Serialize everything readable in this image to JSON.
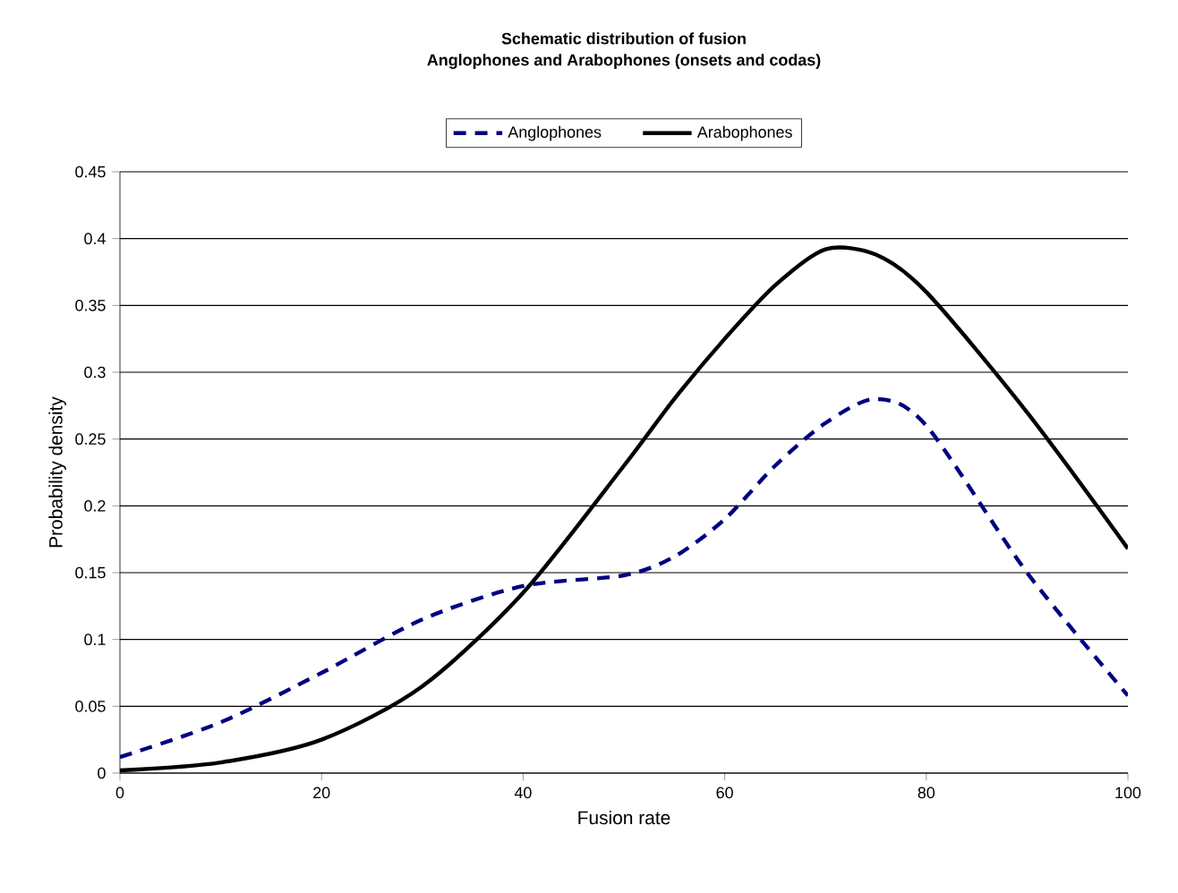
{
  "chart_data": {
    "type": "line",
    "title": "Schematic distribution of fusion",
    "subtitle": "Anglophones and Arabophones (onsets and codas)",
    "xlabel": "Fusion rate",
    "ylabel": "Probability density",
    "x": [
      0,
      10,
      20,
      30,
      40,
      50,
      55,
      60,
      65,
      70,
      75,
      80,
      90,
      100
    ],
    "series": [
      {
        "name": "Anglophones",
        "color": "#000080",
        "line_style": "dashed",
        "values": [
          0.012,
          0.038,
          0.075,
          0.115,
          0.14,
          0.148,
          0.162,
          0.19,
          0.23,
          0.262,
          0.28,
          0.26,
          0.15,
          0.058
        ]
      },
      {
        "name": "Arabophones",
        "color": "#000000",
        "line_style": "solid",
        "values": [
          0.002,
          0.008,
          0.025,
          0.065,
          0.135,
          0.23,
          0.28,
          0.325,
          0.365,
          0.392,
          0.388,
          0.36,
          0.27,
          0.168
        ]
      }
    ],
    "xlim": [
      0,
      100
    ],
    "xticks": [
      0,
      20,
      40,
      60,
      80,
      100
    ],
    "ylim": [
      0,
      0.45
    ],
    "yticks": [
      0,
      0.05,
      0.1,
      0.15,
      0.2,
      0.25,
      0.3,
      0.35,
      0.4,
      0.45
    ],
    "grid": "y",
    "legend": "top",
    "marker": "none"
  }
}
